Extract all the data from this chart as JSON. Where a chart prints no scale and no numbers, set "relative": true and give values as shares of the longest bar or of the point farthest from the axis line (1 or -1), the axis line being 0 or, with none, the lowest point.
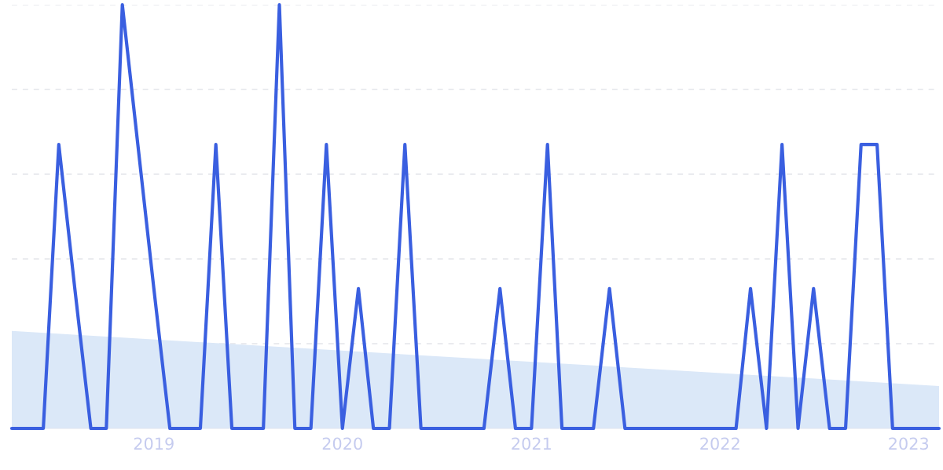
{
  "chart_data": {
    "type": "line",
    "relative": true,
    "grid": "y",
    "legend": false,
    "marker": "none",
    "line_style": "solid",
    "x": [
      "2018-04",
      "2018-05",
      "2018-06",
      "2018-07",
      "2018-08",
      "2018-09",
      "2018-10",
      "2018-11",
      "2018-12",
      "2019-01",
      "2019-02",
      "2019-03",
      "2019-04",
      "2019-05",
      "2019-06",
      "2019-07",
      "2019-08",
      "2019-09",
      "2019-10",
      "2019-11",
      "2019-12",
      "2020-01",
      "2020-02",
      "2020-03",
      "2020-04",
      "2020-05",
      "2020-06",
      "2020-07",
      "2020-08",
      "2020-09",
      "2020-10",
      "2020-11",
      "2020-12",
      "2021-01",
      "2021-02",
      "2021-03",
      "2021-04",
      "2021-05",
      "2021-06",
      "2021-07",
      "2021-08",
      "2021-09",
      "2021-10",
      "2021-11",
      "2021-12",
      "2022-01",
      "2022-02",
      "2022-03",
      "2022-04",
      "2022-05",
      "2022-06",
      "2022-07",
      "2022-08",
      "2022-09",
      "2022-10",
      "2022-11",
      "2022-12",
      "2023-01",
      "2023-02",
      "2023-03"
    ],
    "xlim": [
      "2018-04",
      "2023-03"
    ],
    "xticks": [
      {
        "value": "2019-01",
        "label": "2019"
      },
      {
        "value": "2020-01",
        "label": "2020"
      },
      {
        "value": "2021-01",
        "label": "2021"
      },
      {
        "value": "2022-01",
        "label": "2022"
      },
      {
        "value": "2023-01",
        "label": "2023"
      }
    ],
    "series": [
      {
        "type": "area",
        "color": "#dbe8f8",
        "x": [
          "2018-04",
          "2023-03"
        ],
        "values": [
          0.23,
          0.1
        ]
      },
      {
        "color": "#3a5fe0",
        "values": [
          0,
          0,
          0,
          0.67,
          0.33,
          0,
          0,
          1,
          0.67,
          0.33,
          0,
          0,
          0,
          0.67,
          0,
          0,
          0,
          1,
          0,
          0,
          0.67,
          0,
          0.33,
          0,
          0,
          0.67,
          0,
          0,
          0,
          0,
          0,
          0.33,
          0,
          0,
          0.67,
          0,
          0,
          0,
          0.33,
          0,
          0,
          0,
          0,
          0,
          0,
          0,
          0,
          0.33,
          0,
          0.67,
          0,
          0.33,
          0,
          0,
          0.67,
          0.67,
          0,
          0,
          0,
          0
        ]
      }
    ]
  }
}
